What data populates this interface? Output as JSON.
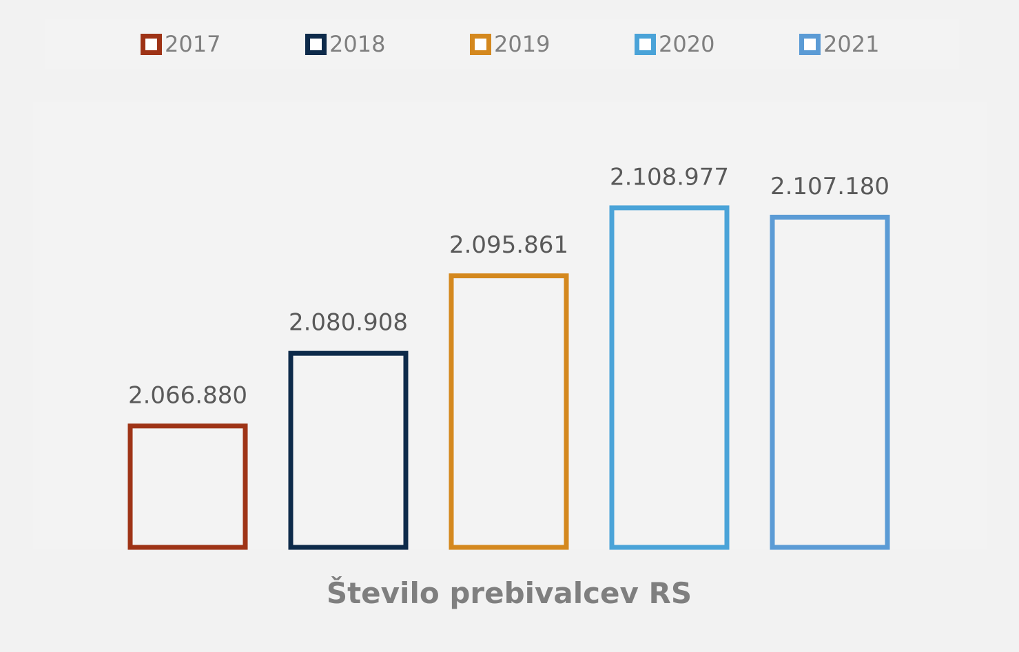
{
  "chart_data": {
    "type": "bar",
    "categories": [
      "2017",
      "2018",
      "2019",
      "2020",
      "2021"
    ],
    "values": [
      2066880,
      2080908,
      2095861,
      2108977,
      2107180
    ],
    "value_labels": [
      "2.066.880",
      "2.080.908",
      "2.095.861",
      "2.108.977",
      "2.107.180"
    ],
    "colors": [
      "#9e3316",
      "#0d2a4a",
      "#d4881e",
      "#4aa3d8",
      "#5b9bd5"
    ],
    "xlabel": "Število prebivalcev RS",
    "ylabel": "",
    "ylim": [
      2043000,
      2117000
    ],
    "legend": {
      "position": "top",
      "entries": [
        "2017",
        "2018",
        "2019",
        "2020",
        "2021"
      ]
    },
    "grid": false,
    "bar_style": "outline"
  }
}
